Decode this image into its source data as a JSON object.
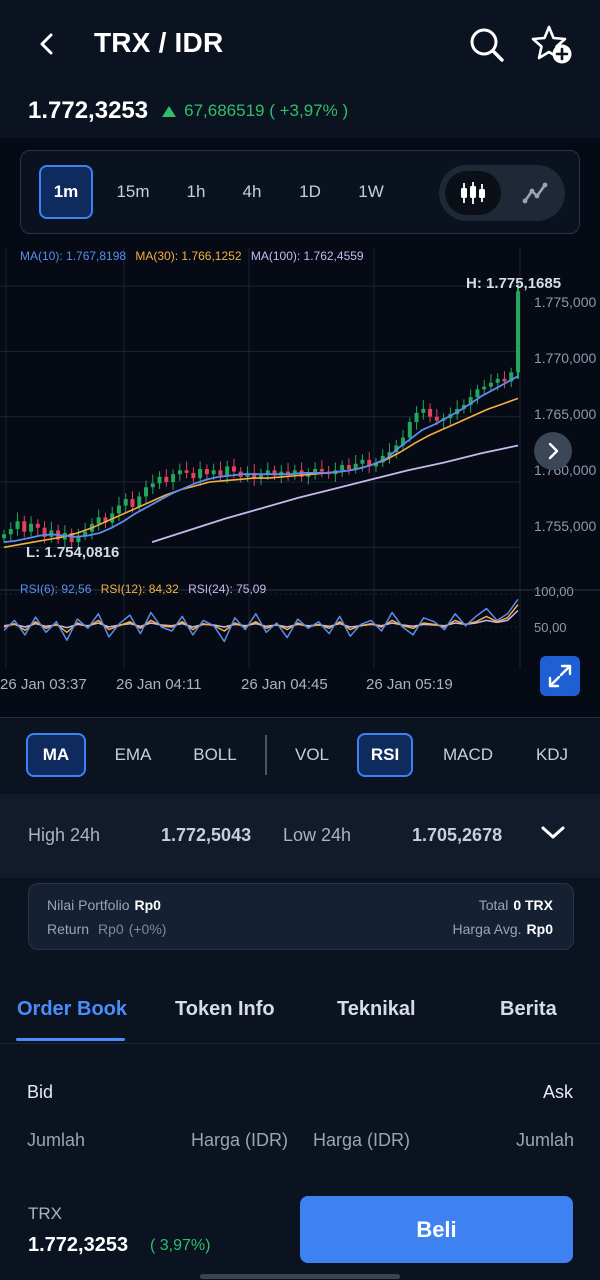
{
  "header": {
    "title": "TRX / IDR",
    "back_icon": "chevron-left-icon",
    "search_icon": "search-icon",
    "watchlist_icon": "star-plus-icon"
  },
  "price": {
    "last": "1.772,3253",
    "change": "67,686519 ( +3,97% )",
    "change_color": "#2fbf6a"
  },
  "timeframes": [
    {
      "label": "1m",
      "active": true
    },
    {
      "label": "15m",
      "active": false
    },
    {
      "label": "1h",
      "active": false
    },
    {
      "label": "4h",
      "active": false
    },
    {
      "label": "1D",
      "active": false
    },
    {
      "label": "1W",
      "active": false
    }
  ],
  "chart_type_toggle": {
    "candle_icon": "candlestick-icon",
    "line_icon": "line-chart-icon",
    "selected": "candle"
  },
  "chart_data": {
    "type": "candlestick",
    "ma_legend": [
      {
        "text": "MA(10): 1.767,8198",
        "color": "#5b8def"
      },
      {
        "text": "MA(30): 1.766,1252",
        "color": "#f5b041"
      },
      {
        "text": "MA(100): 1.762,4559",
        "color": "#c9b8f0"
      }
    ],
    "high_label": "H: 1.775,1685",
    "low_label": "L: 1.754,0816",
    "y_ticks": [
      "1.775,000",
      "1.770,000",
      "1.765,000",
      "1.760,000",
      "1.755,000"
    ],
    "y_tick_values": [
      1775,
      1770,
      1765,
      1760,
      1755
    ],
    "ylim": [
      1752.5,
      1777
    ],
    "x_ticks": [
      "26 Jan 03:37",
      "26 Jan 04:11",
      "26 Jan 04:45",
      "26 Jan 05:19"
    ],
    "close_series": [
      1756.0,
      1756.4,
      1757.0,
      1756.2,
      1756.8,
      1756.5,
      1755.8,
      1756.3,
      1755.6,
      1756.1,
      1755.4,
      1755.9,
      1756.2,
      1756.8,
      1757.3,
      1756.9,
      1757.6,
      1758.2,
      1758.7,
      1758.1,
      1758.9,
      1759.6,
      1759.9,
      1760.4,
      1760.0,
      1760.6,
      1760.9,
      1760.7,
      1760.3,
      1761.0,
      1760.6,
      1760.9,
      1760.5,
      1761.2,
      1760.8,
      1760.4,
      1760.7,
      1760.3,
      1760.6,
      1760.9,
      1760.5,
      1760.8,
      1760.6,
      1760.9,
      1760.4,
      1760.7,
      1761.0,
      1760.8,
      1760.6,
      1760.9,
      1761.3,
      1761.0,
      1761.4,
      1761.7,
      1761.2,
      1761.5,
      1762.0,
      1762.3,
      1762.8,
      1763.4,
      1764.6,
      1765.3,
      1765.6,
      1765.0,
      1764.7,
      1764.9,
      1765.2,
      1765.6,
      1765.9,
      1766.5,
      1767.1,
      1767.3,
      1767.6,
      1767.9,
      1767.7,
      1768.4,
      1774.6
    ],
    "ma10_series": [
      1755.4,
      1755.5,
      1755.7,
      1755.9,
      1756.0,
      1755.9,
      1755.8,
      1755.9,
      1756.1,
      1756.5,
      1757.0,
      1757.6,
      1758.1,
      1758.6,
      1759.1,
      1759.5,
      1759.9,
      1760.2,
      1760.4,
      1760.5,
      1760.6,
      1760.6,
      1760.6,
      1760.6,
      1760.6,
      1760.7,
      1760.7,
      1760.7,
      1760.8,
      1760.9,
      1761.1,
      1761.4,
      1761.8,
      1762.6,
      1763.3,
      1764.0,
      1764.4,
      1764.9,
      1765.4,
      1766.0,
      1766.6,
      1767.1,
      1767.6,
      1768.1
    ],
    "ma30_series": [
      1755.0,
      1755.2,
      1755.4,
      1755.6,
      1755.8,
      1756.1,
      1756.5,
      1757.0,
      1757.5,
      1758.0,
      1758.5,
      1759.0,
      1759.4,
      1759.7,
      1760.0,
      1760.1,
      1760.2,
      1760.3,
      1760.3,
      1760.4,
      1760.5,
      1760.6,
      1760.7,
      1760.8,
      1761.0,
      1761.3,
      1761.7,
      1762.3,
      1763.0,
      1763.6,
      1764.1,
      1764.6,
      1765.1,
      1765.6,
      1766.0,
      1766.4
    ],
    "ma100_series": [
      1755.4,
      1756.3,
      1757.2,
      1758.0,
      1758.8,
      1759.5,
      1760.2,
      1760.9,
      1761.5,
      1762.2,
      1762.8
    ],
    "rsi_legend": [
      {
        "text": "RSI(6): 92,56",
        "color": "#5b8def"
      },
      {
        "text": "RSI(12): 84,32",
        "color": "#f5b041"
      },
      {
        "text": "RSI(24): 75,09",
        "color": "#c9b8f0"
      }
    ],
    "rsi_ticks": [
      "100,00",
      "50,00"
    ],
    "rsi_tick_values": [
      100,
      50
    ],
    "rsi6_series": [
      45,
      60,
      38,
      65,
      42,
      58,
      30,
      62,
      48,
      70,
      35,
      55,
      68,
      40,
      72,
      50,
      44,
      66,
      38,
      60,
      52,
      28,
      64,
      46,
      70,
      42,
      56,
      34,
      62,
      48,
      58,
      40,
      66,
      36,
      54,
      60,
      44,
      72,
      50,
      38,
      64,
      58,
      46,
      70,
      52,
      66,
      78,
      60,
      70,
      92
    ],
    "rsi12_series": [
      50,
      55,
      45,
      58,
      48,
      54,
      42,
      56,
      50,
      60,
      46,
      52,
      58,
      48,
      60,
      52,
      50,
      58,
      46,
      55,
      52,
      44,
      56,
      50,
      58,
      48,
      54,
      46,
      56,
      50,
      54,
      48,
      58,
      46,
      52,
      55,
      50,
      60,
      52,
      48,
      56,
      54,
      50,
      60,
      54,
      58,
      66,
      58,
      64,
      84
    ],
    "rsi24_series": [
      52,
      54,
      50,
      55,
      51,
      53,
      49,
      54,
      52,
      56,
      50,
      53,
      55,
      51,
      56,
      53,
      52,
      55,
      50,
      54,
      53,
      50,
      54,
      52,
      55,
      51,
      53,
      50,
      54,
      52,
      53,
      51,
      55,
      50,
      52,
      54,
      52,
      56,
      53,
      51,
      54,
      53,
      52,
      56,
      54,
      56,
      60,
      57,
      60,
      75
    ]
  },
  "chart_controls": {
    "next_icon": "chevron-right-icon",
    "expand_icon": "expand-icon"
  },
  "indicators": [
    {
      "label": "MA",
      "active": true
    },
    {
      "label": "EMA",
      "active": false
    },
    {
      "label": "BOLL",
      "active": false
    },
    {
      "label": "VOL",
      "active": false
    },
    {
      "label": "RSI",
      "active": true
    },
    {
      "label": "MACD",
      "active": false
    },
    {
      "label": "KDJ",
      "active": false
    }
  ],
  "stats": {
    "high_label": "High 24h",
    "high_value": "1.772,5043",
    "low_label": "Low 24h",
    "low_value": "1.705,2678"
  },
  "portfolio": {
    "value_label": "Nilai Portfolio",
    "value": "Rp0",
    "return_label": "Return",
    "return_value": "Rp0",
    "return_pct": "(+0%)",
    "total_label": "Total",
    "total_value": "0 TRX",
    "avg_label": "Harga Avg.",
    "avg_value": "Rp0"
  },
  "tabs": [
    {
      "label": "Order Book",
      "active": true
    },
    {
      "label": "Token Info",
      "active": false
    },
    {
      "label": "Teknikal",
      "active": false
    },
    {
      "label": "Berita",
      "active": false
    }
  ],
  "orderbook": {
    "bid": "Bid",
    "ask": "Ask",
    "col_amount_left": "Jumlah",
    "col_price_left": "Harga (IDR)",
    "col_price_right": "Harga (IDR)",
    "col_amount_right": "Jumlah"
  },
  "bottom": {
    "symbol": "TRX",
    "price": "1.772,3253",
    "change": "( 3,97%)",
    "buy_label": "Beli"
  },
  "colors": {
    "bg": "#0b1220",
    "accent": "#3b82f6",
    "up": "#26a65b",
    "down": "#e0435a"
  }
}
